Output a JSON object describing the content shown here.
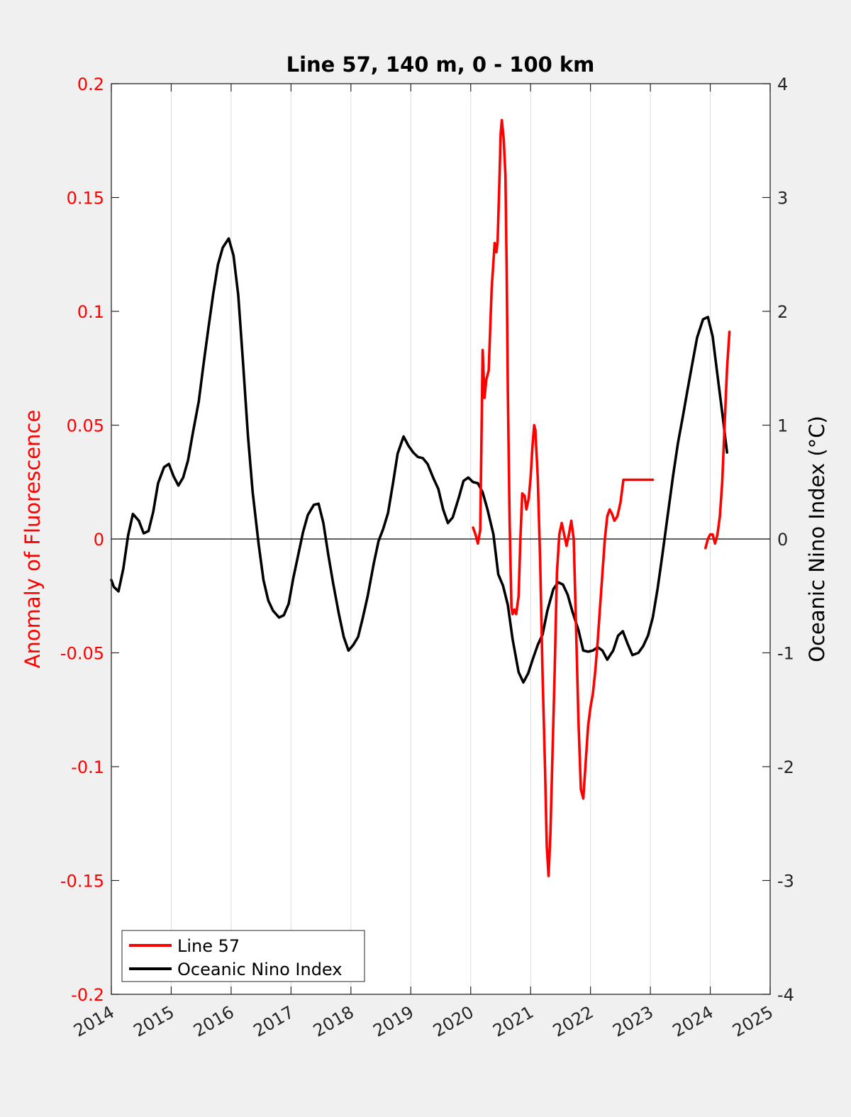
{
  "chart_data": {
    "type": "line",
    "title": "Line 57, 140 m, 0 - 100 km",
    "xlabel": "",
    "ylabel_left": "Anomaly of Fluorescence",
    "ylabel_right": "Oceanic Nino Index (°C)",
    "xlim": [
      2014,
      2025
    ],
    "ylim_left": [
      -0.2,
      0.2
    ],
    "ylim_right": [
      -4,
      4
    ],
    "x_ticks": [
      "2014",
      "2015",
      "2016",
      "2017",
      "2018",
      "2019",
      "2020",
      "2021",
      "2022",
      "2023",
      "2024",
      "2025"
    ],
    "y_left_ticks": [
      "-0.2",
      "-0.15",
      "-0.1",
      "-0.05",
      "0",
      "0.05",
      "0.1",
      "0.15",
      "0.2"
    ],
    "y_right_ticks": [
      "-4",
      "-3",
      "-2",
      "-1",
      "0",
      "1",
      "2",
      "3",
      "4"
    ],
    "grid": "vertical",
    "zero_line": true,
    "legend": {
      "location": "bottom-left",
      "entries": [
        "Line 57",
        "Oceanic Nino Index"
      ]
    },
    "colors": {
      "line57": "#ff0000",
      "oni": "#000000",
      "left_axis": "#ff0000",
      "right_axis": "#000000"
    },
    "series": [
      {
        "name": "Line 57",
        "axis": "left",
        "color": "#ff0000",
        "segments": [
          {
            "x": [
              2020.04,
              2020.08,
              2020.12,
              2020.16,
              2020.2,
              2020.23,
              2020.26,
              2020.3,
              2020.35,
              2020.4,
              2020.43,
              2020.45,
              2020.48,
              2020.5,
              2020.52,
              2020.55,
              2020.58,
              2020.6,
              2020.62,
              2020.65,
              2020.68,
              2020.7,
              2020.73,
              2020.76,
              2020.8,
              2020.83,
              2020.86,
              2020.9,
              2020.93,
              2020.97,
              2021.0,
              2021.03,
              2021.06,
              2021.08,
              2021.12,
              2021.16,
              2021.2,
              2021.24,
              2021.27,
              2021.3,
              2021.33,
              2021.36,
              2021.4,
              2021.44,
              2021.48,
              2021.52,
              2021.56,
              2021.6,
              2021.64,
              2021.68,
              2021.72,
              2021.76,
              2021.8,
              2021.84,
              2021.88,
              2021.92,
              2021.96,
              2022.0,
              2022.04,
              2022.08,
              2022.12,
              2022.16,
              2022.2,
              2022.24,
              2022.28,
              2022.32,
              2022.36,
              2022.4,
              2022.45,
              2022.5,
              2022.55,
              2022.6,
              2022.65,
              2022.7,
              2022.75,
              2022.8,
              2022.85,
              2022.9,
              2022.95,
              2023.0,
              2023.04
            ],
            "y": [
              0.005,
              0.002,
              -0.002,
              0.004,
              0.083,
              0.062,
              0.07,
              0.074,
              0.11,
              0.13,
              0.126,
              0.131,
              0.158,
              0.178,
              0.184,
              0.176,
              0.16,
              0.12,
              0.065,
              0.008,
              -0.03,
              -0.033,
              -0.031,
              -0.033,
              -0.025,
              0.0,
              0.02,
              0.019,
              0.013,
              0.018,
              0.027,
              0.04,
              0.05,
              0.048,
              0.027,
              -0.01,
              -0.06,
              -0.1,
              -0.135,
              -0.148,
              -0.13,
              -0.1,
              -0.06,
              -0.015,
              0.002,
              0.007,
              0.002,
              -0.003,
              0.002,
              0.008,
              0.0,
              -0.04,
              -0.08,
              -0.11,
              -0.114,
              -0.098,
              -0.082,
              -0.074,
              -0.068,
              -0.058,
              -0.045,
              -0.03,
              -0.015,
              0.0,
              0.01,
              0.013,
              0.011,
              0.008,
              0.01,
              0.016,
              0.026,
              0.026,
              0.026,
              0.026,
              0.026,
              0.026,
              0.026,
              0.026,
              0.026,
              0.026,
              0.026
            ]
          },
          {
            "x": [
              2023.92,
              2023.96,
              2024.0,
              2024.04,
              2024.08,
              2024.12,
              2024.16,
              2024.2,
              2024.24,
              2024.28,
              2024.32
            ],
            "y": [
              -0.004,
              0.0,
              0.002,
              0.002,
              -0.002,
              0.002,
              0.01,
              0.025,
              0.05,
              0.075,
              0.091
            ]
          }
        ]
      },
      {
        "name": "Oceanic Nino Index",
        "axis": "right",
        "color": "#000000",
        "x": [
          2014.0,
          2014.04,
          2014.12,
          2014.2,
          2014.28,
          2014.36,
          2014.46,
          2014.54,
          2014.62,
          2014.7,
          2014.78,
          2014.88,
          2014.96,
          2015.04,
          2015.12,
          2015.2,
          2015.28,
          2015.36,
          2015.46,
          2015.54,
          2015.62,
          2015.7,
          2015.78,
          2015.86,
          2015.96,
          2016.04,
          2016.12,
          2016.2,
          2016.28,
          2016.36,
          2016.46,
          2016.54,
          2016.62,
          2016.7,
          2016.8,
          2016.88,
          2016.96,
          2017.04,
          2017.12,
          2017.2,
          2017.28,
          2017.38,
          2017.46,
          2017.54,
          2017.62,
          2017.7,
          2017.8,
          2017.88,
          2017.96,
          2018.04,
          2018.12,
          2018.2,
          2018.28,
          2018.38,
          2018.46,
          2018.54,
          2018.62,
          2018.7,
          2018.78,
          2018.88,
          2018.96,
          2019.04,
          2019.12,
          2019.2,
          2019.28,
          2019.38,
          2019.46,
          2019.54,
          2019.62,
          2019.7,
          2019.8,
          2019.88,
          2019.96,
          2020.04,
          2020.12,
          2020.2,
          2020.28,
          2020.38,
          2020.46,
          2020.54,
          2020.62,
          2020.7,
          2020.8,
          2020.88,
          2020.96,
          2021.04,
          2021.12,
          2021.2,
          2021.28,
          2021.38,
          2021.46,
          2021.54,
          2021.62,
          2021.7,
          2021.8,
          2021.88,
          2021.96,
          2022.04,
          2022.12,
          2022.2,
          2022.28,
          2022.38,
          2022.46,
          2022.54,
          2022.62,
          2022.7,
          2022.8,
          2022.88,
          2022.96,
          2023.04,
          2023.12,
          2023.2,
          2023.28,
          2023.38,
          2023.46,
          2023.54,
          2023.62,
          2023.7,
          2023.78,
          2023.88,
          2023.96,
          2024.04,
          2024.12,
          2024.2,
          2024.28
        ],
        "y": [
          -0.36,
          -0.42,
          -0.46,
          -0.26,
          0.03,
          0.22,
          0.16,
          0.05,
          0.07,
          0.24,
          0.49,
          0.63,
          0.66,
          0.55,
          0.47,
          0.54,
          0.69,
          0.93,
          1.21,
          1.54,
          1.85,
          2.15,
          2.41,
          2.56,
          2.64,
          2.49,
          2.14,
          1.54,
          0.91,
          0.41,
          -0.05,
          -0.36,
          -0.54,
          -0.63,
          -0.69,
          -0.67,
          -0.57,
          -0.34,
          -0.14,
          0.06,
          0.21,
          0.3,
          0.31,
          0.14,
          -0.13,
          -0.38,
          -0.66,
          -0.86,
          -0.98,
          -0.93,
          -0.86,
          -0.69,
          -0.5,
          -0.22,
          -0.02,
          0.09,
          0.23,
          0.48,
          0.75,
          0.9,
          0.82,
          0.76,
          0.72,
          0.71,
          0.66,
          0.53,
          0.44,
          0.26,
          0.14,
          0.19,
          0.36,
          0.51,
          0.54,
          0.5,
          0.49,
          0.41,
          0.26,
          0.04,
          -0.31,
          -0.41,
          -0.58,
          -0.88,
          -1.17,
          -1.26,
          -1.18,
          -1.05,
          -0.93,
          -0.84,
          -0.63,
          -0.44,
          -0.38,
          -0.4,
          -0.49,
          -0.64,
          -0.8,
          -0.98,
          -0.99,
          -0.98,
          -0.95,
          -0.98,
          -1.06,
          -0.98,
          -0.85,
          -0.81,
          -0.92,
          -1.02,
          -1.0,
          -0.94,
          -0.85,
          -0.69,
          -0.44,
          -0.14,
          0.17,
          0.56,
          0.84,
          1.07,
          1.31,
          1.54,
          1.77,
          1.93,
          1.95,
          1.78,
          1.44,
          1.11,
          0.76
        ]
      }
    ]
  }
}
